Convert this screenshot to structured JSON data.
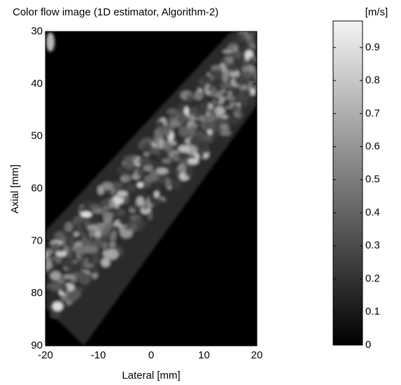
{
  "chart_data": {
    "type": "image",
    "title": "Color flow image (1D estimator, Algorithm-2)",
    "xlabel": "Lateral [mm]",
    "ylabel": "Axial [mm]",
    "xlim": [
      -20,
      20
    ],
    "xticks": [
      -20,
      -10,
      0,
      10,
      20
    ],
    "ylim": [
      90,
      30
    ],
    "yticks": [
      30,
      40,
      50,
      60,
      70,
      80,
      90
    ],
    "colorbar": {
      "label": "[m/s]",
      "clim": [
        0,
        0.98
      ],
      "ticks": [
        0,
        0.1,
        0.2,
        0.3,
        0.4,
        0.5,
        0.6,
        0.7,
        0.8,
        0.9
      ],
      "colormap": "gray"
    }
  }
}
